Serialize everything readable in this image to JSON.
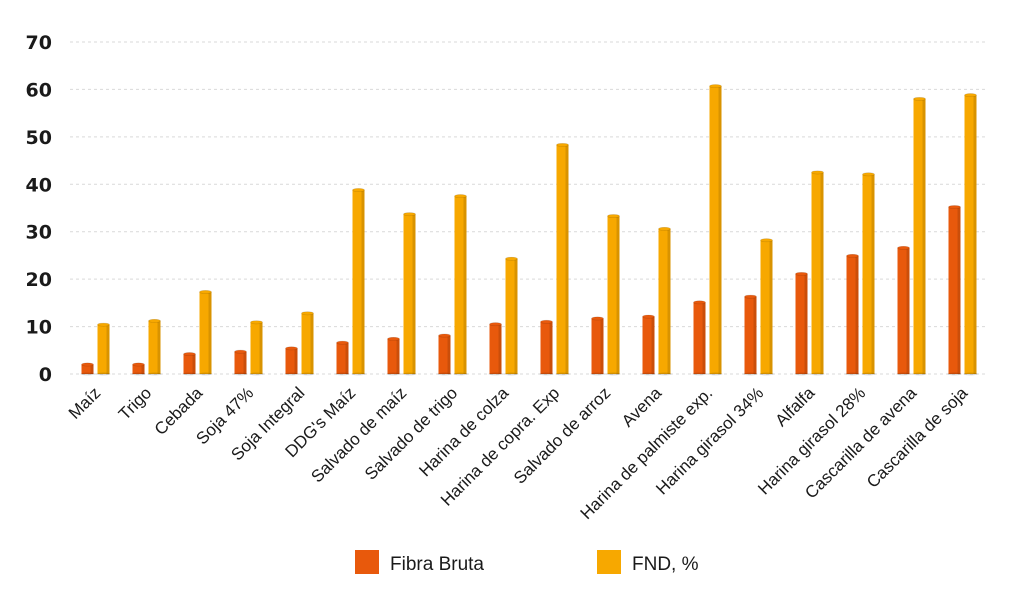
{
  "chart_data": {
    "type": "bar",
    "title": "",
    "xlabel": "",
    "ylabel": "",
    "ylim": [
      0,
      70
    ],
    "yticks": [
      0,
      10,
      20,
      30,
      40,
      50,
      60,
      70
    ],
    "grid": true,
    "legend_position": "bottom-center",
    "categories": [
      "Maíz",
      "Trigo",
      "Cebada",
      "Soja 47%",
      "Soja Integral",
      "DDG's Maíz",
      "Salvado de maíz",
      "Salvado de trigo",
      "Harina de colza",
      "Harina de copra. Exp",
      "Salvado de arroz",
      "Avena",
      "Harina de palmiste exp.",
      "Harina girasol 34%",
      "Alfalfa",
      "Harina girasol 28%",
      "Cascarilla de avena",
      "Cascarilla de soja"
    ],
    "series": [
      {
        "name": "Fibra Bruta",
        "color": "#e8590c",
        "values": [
          2,
          2,
          4.2,
          4.7,
          5.4,
          6.6,
          7.4,
          8.1,
          10.5,
          11,
          11.7,
          12.1,
          15.1,
          16.3,
          21.1,
          24.9,
          26.6,
          35.2
        ]
      },
      {
        "name": "FND, %",
        "color": "#f7a800",
        "values": [
          10.4,
          11.2,
          17.3,
          10.9,
          12.8,
          38.8,
          33.7,
          37.5,
          24.3,
          48.3,
          33.3,
          30.6,
          60.7,
          28.2,
          42.5,
          42.1,
          58,
          58.8
        ]
      }
    ]
  }
}
